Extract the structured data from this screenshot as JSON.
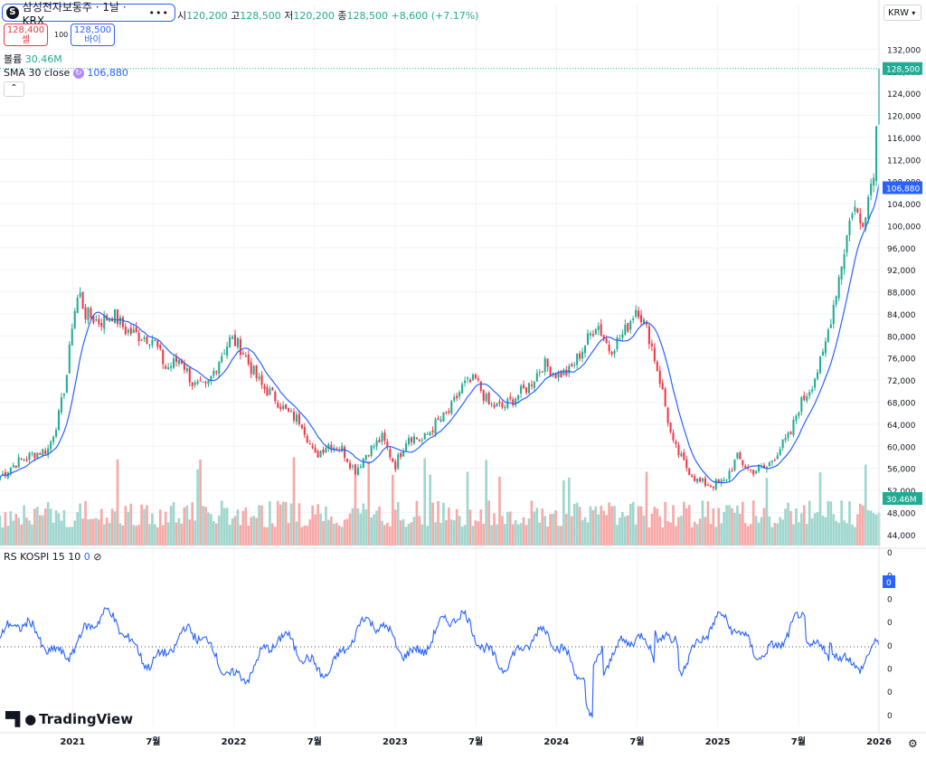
{
  "symbol": {
    "icon_letter": "S",
    "title": "삼성전자보통주 · 1날 · KRX",
    "more_icon": "more-dots-icon"
  },
  "ohlc": {
    "open_label": "시",
    "open": "120,200",
    "high_label": "고",
    "high": "128,500",
    "low_label": "저",
    "low": "120,200",
    "close_label": "종",
    "close": "128,500",
    "change": "+8,600 (+7.17%)"
  },
  "trade": {
    "sell_price": "128,400",
    "sell_label": "셀",
    "qty": "100",
    "buy_price": "128,500",
    "buy_label": "바이"
  },
  "indicators": {
    "volume_label": "볼륨",
    "volume_value": "30.46M",
    "sma_label": "SMA 30 close",
    "sma_value": "106,880",
    "rs_label": "RS",
    "rs_params": "KOSPI 15 10",
    "rs_value": "0",
    "rs_icon": "hidden-eye-slash-icon"
  },
  "currency": "KRW",
  "branding": {
    "logo_text": "TradingView"
  },
  "colors": {
    "up": "#22ab94",
    "down": "#f23645",
    "sma": "#2962ff",
    "rs": "#2962ff",
    "vol_up": "#9fd6cd",
    "vol_down": "#f7a9a7",
    "price_badge": "#22ab94",
    "sma_badge": "#2962ff"
  },
  "chart_data": [
    {
      "type": "candlestick",
      "title": "삼성전자보통주 · 1날 · KRX",
      "x_labels": [
        "2021",
        "7월",
        "2022",
        "7월",
        "2023",
        "7월",
        "2024",
        "7월",
        "2025",
        "7월",
        "2026"
      ],
      "y_ticks": [
        "132,000",
        "128,000",
        "124,000",
        "120,000",
        "116,000",
        "112,000",
        "108,000",
        "104,000",
        "100,000",
        "96,000",
        "92,000",
        "88,000",
        "84,000",
        "80,000",
        "76,000",
        "72,000",
        "68,000",
        "64,000",
        "60,000",
        "56,000",
        "52,000",
        "48,000",
        "44,000"
      ],
      "ylim": [
        42000,
        136000
      ],
      "x_range": [
        2020.55,
        2026.0
      ],
      "price_anchors": [
        [
          2020.55,
          54500
        ],
        [
          2020.65,
          57000
        ],
        [
          2020.75,
          58500
        ],
        [
          2020.85,
          59500
        ],
        [
          2020.92,
          66000
        ],
        [
          2020.97,
          74000
        ],
        [
          2021.0,
          83000
        ],
        [
          2021.04,
          88000
        ],
        [
          2021.08,
          84000
        ],
        [
          2021.17,
          82500
        ],
        [
          2021.25,
          84000
        ],
        [
          2021.33,
          81000
        ],
        [
          2021.42,
          80000
        ],
        [
          2021.5,
          79500
        ],
        [
          2021.58,
          74000
        ],
        [
          2021.67,
          76000
        ],
        [
          2021.75,
          71000
        ],
        [
          2021.83,
          70500
        ],
        [
          2021.92,
          76500
        ],
        [
          2021.98,
          79500
        ],
        [
          2022.04,
          78000
        ],
        [
          2022.1,
          74500
        ],
        [
          2022.17,
          71000
        ],
        [
          2022.25,
          69000
        ],
        [
          2022.33,
          66000
        ],
        [
          2022.42,
          64500
        ],
        [
          2022.5,
          58000
        ],
        [
          2022.58,
          60500
        ],
        [
          2022.67,
          59500
        ],
        [
          2022.75,
          55500
        ],
        [
          2022.83,
          59000
        ],
        [
          2022.92,
          61500
        ],
        [
          2023.0,
          56500
        ],
        [
          2023.08,
          62000
        ],
        [
          2023.17,
          61000
        ],
        [
          2023.25,
          64000
        ],
        [
          2023.33,
          66000
        ],
        [
          2023.42,
          71000
        ],
        [
          2023.5,
          72000
        ],
        [
          2023.58,
          67500
        ],
        [
          2023.67,
          67000
        ],
        [
          2023.75,
          69000
        ],
        [
          2023.83,
          71000
        ],
        [
          2023.92,
          75000
        ],
        [
          2024.0,
          73000
        ],
        [
          2024.08,
          73500
        ],
        [
          2024.17,
          78000
        ],
        [
          2024.25,
          82500
        ],
        [
          2024.33,
          77500
        ],
        [
          2024.42,
          80500
        ],
        [
          2024.5,
          85500
        ],
        [
          2024.58,
          79500
        ],
        [
          2024.65,
          71000
        ],
        [
          2024.72,
          60500
        ],
        [
          2024.8,
          56500
        ],
        [
          2024.88,
          53500
        ],
        [
          2024.96,
          53000
        ],
        [
          2025.04,
          53500
        ],
        [
          2025.12,
          58000
        ],
        [
          2025.2,
          55500
        ],
        [
          2025.3,
          56000
        ],
        [
          2025.38,
          59500
        ],
        [
          2025.45,
          62000
        ],
        [
          2025.5,
          67000
        ],
        [
          2025.58,
          71000
        ],
        [
          2025.65,
          76000
        ],
        [
          2025.72,
          86000
        ],
        [
          2025.78,
          95000
        ],
        [
          2025.84,
          104000
        ],
        [
          2025.89,
          100000
        ],
        [
          2025.94,
          106000
        ],
        [
          2025.975,
          112000
        ],
        [
          2026.0,
          128500
        ]
      ],
      "sma": {
        "name": "SMA 30 close",
        "last": 106880
      },
      "volume": {
        "name": "볼륨",
        "last": "30.46M"
      },
      "last_price": 128500
    },
    {
      "type": "line",
      "title": "RS KOSPI 15 10",
      "series": [
        {
          "name": "RS",
          "last": 0
        }
      ],
      "y_ticks": [
        "0",
        "0",
        "0",
        "0",
        "0",
        "0",
        "0",
        "0"
      ]
    }
  ]
}
